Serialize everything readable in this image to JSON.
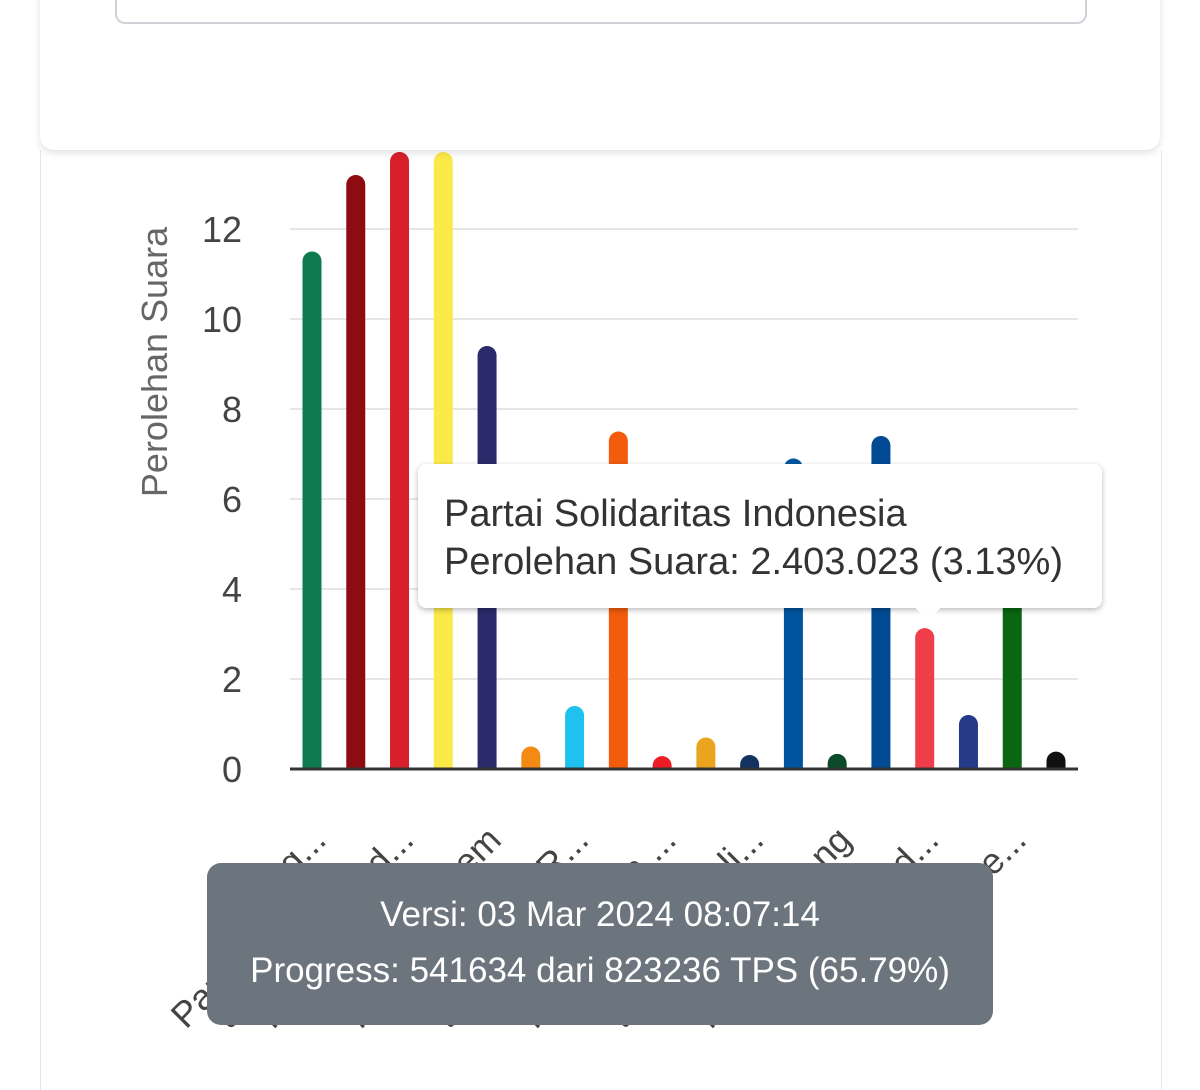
{
  "chart_data": {
    "type": "bar",
    "ylabel": "Perolehan Suara",
    "ylim": [
      0,
      13.5
    ],
    "yticks": [
      0,
      2,
      4,
      6,
      8,
      10,
      12
    ],
    "categories": [
      "Partai K...g...",
      "Partai D...d...",
      "Partai ...",
      "Partai ...",
      "Partai ...em",
      "Partai ...",
      "Partai ...R...",
      "Partai ...",
      "Partai ...a ...",
      "Partai ...",
      "Partai ...li...",
      "Partai ...",
      "Partai ...ng",
      "Partai ...",
      "Partai ...d...",
      "Partai ...",
      "Partai ...e...",
      "Partai ..."
    ],
    "x_tick_labels": [
      {
        "index": 0,
        "upper": "g...",
        "lower": "Partai K"
      },
      {
        "index": 1,
        "lower": "ai D"
      },
      {
        "index": 2,
        "upper": "d...",
        "lower": "rtai"
      },
      {
        "index": 4,
        "upper": "em",
        "lower": "rtai"
      },
      {
        "index": 6,
        "upper": "R...",
        "lower": "tai"
      },
      {
        "index": 8,
        "upper": "a ...",
        "lower": "rta"
      },
      {
        "index": 10,
        "upper": "li...",
        "lower": "tai"
      },
      {
        "index": 12,
        "upper": "ng",
        "lower": "rtai"
      },
      {
        "index": 14,
        "upper": "d..."
      },
      {
        "index": 16,
        "upper": "e..."
      }
    ],
    "values": [
      11.5,
      13.2,
      14.5,
      14.5,
      9.4,
      0.5,
      1.4,
      7.5,
      0.15,
      0.7,
      0.2,
      6.9,
      0.25,
      7.4,
      3.13,
      1.2,
      4.0,
      0.35
    ],
    "colors": [
      "#0d7a50",
      "#8e0b11",
      "#d7202b",
      "#fbe947",
      "#2b2a6a",
      "#f28a14",
      "#1fc1ef",
      "#f25c0c",
      "#ee1c25",
      "#eaa41d",
      "#14325f",
      "#00549f",
      "#0b4a2a",
      "#024a94",
      "#ef3e4a",
      "#263a8a",
      "#0b6612",
      "#111111"
    ],
    "grid": true
  },
  "tooltip": {
    "title": "Partai Solidaritas Indonesia",
    "line": "Perolehan Suara: 2.403.023 (3.13%)"
  },
  "toast": {
    "version": "Versi: 03 Mar 2024 08:07:14",
    "progress": "Progress: 541634 dari 823236 TPS (65.79%)",
    "progress_fraction": 0.6579
  }
}
